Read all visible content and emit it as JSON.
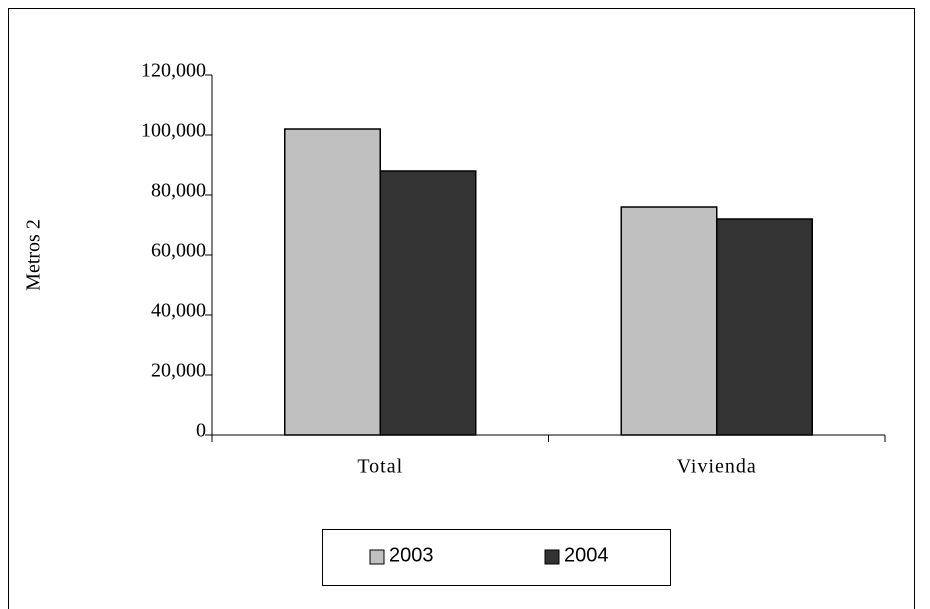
{
  "chart_data": {
    "type": "bar",
    "y_label": "Metros 2",
    "categories": [
      "Total",
      "Vivienda"
    ],
    "series": [
      {
        "name": "2003",
        "color": "#c0c0c0",
        "values": [
          102000,
          76000
        ]
      },
      {
        "name": "2004",
        "color": "#333333",
        "values": [
          88000,
          72000
        ]
      }
    ],
    "ylim": [
      0,
      120000
    ],
    "yticks": [
      0,
      {
        "value": 20000,
        "label": "20,000"
      },
      {
        "value": 40000,
        "label": "40,000"
      },
      {
        "value": 60000,
        "label": "60,000"
      },
      {
        "value": 80000,
        "label": "80,000"
      },
      {
        "value": 100000,
        "label": "100,000"
      },
      {
        "value": 120000,
        "label": "120,000"
      }
    ],
    "legend": "bottom"
  }
}
